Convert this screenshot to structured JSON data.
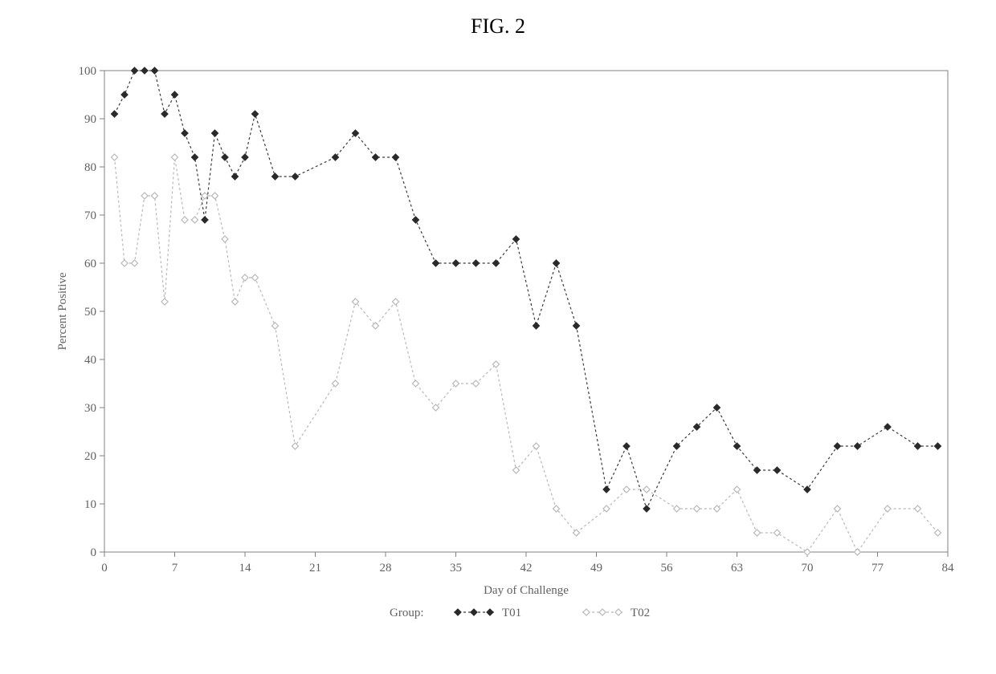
{
  "figure": {
    "title": "FIG. 2",
    "title_fontsize": 26,
    "title_color": "#000000",
    "background_color": "#ffffff"
  },
  "chart": {
    "type": "line",
    "plot_background": "#ffffff",
    "border_color": "#808080",
    "border_width": 1,
    "x": {
      "label": "Day of Challenge",
      "label_fontsize": 15,
      "min": 0,
      "max": 84,
      "ticks": [
        0,
        7,
        14,
        21,
        28,
        35,
        42,
        49,
        56,
        63,
        70,
        77,
        84
      ],
      "tick_fontsize": 15,
      "tick_color": "#808080",
      "axis_label_color": "#616161"
    },
    "y": {
      "label": "Percent Positive",
      "label_fontsize": 15,
      "min": 0,
      "max": 100,
      "ticks": [
        0,
        10,
        20,
        30,
        40,
        50,
        60,
        70,
        80,
        90,
        100
      ],
      "tick_fontsize": 15,
      "tick_color": "#808080",
      "axis_label_color": "#616161"
    },
    "legend": {
      "title": "Group:",
      "title_fontsize": 15,
      "fontsize": 15,
      "position": "bottom-center"
    },
    "series": [
      {
        "name": "T01",
        "label": "T01",
        "line_color": "#3a3a3a",
        "line_width": 1.2,
        "line_dash": "3,3",
        "marker": "diamond-filled",
        "marker_size": 8,
        "marker_color": "#2a2a2a",
        "data": [
          {
            "x": 1,
            "y": 91
          },
          {
            "x": 2,
            "y": 95
          },
          {
            "x": 3,
            "y": 100
          },
          {
            "x": 4,
            "y": 100
          },
          {
            "x": 5,
            "y": 100
          },
          {
            "x": 6,
            "y": 91
          },
          {
            "x": 7,
            "y": 95
          },
          {
            "x": 8,
            "y": 87
          },
          {
            "x": 9,
            "y": 82
          },
          {
            "x": 10,
            "y": 69
          },
          {
            "x": 11,
            "y": 87
          },
          {
            "x": 12,
            "y": 82
          },
          {
            "x": 13,
            "y": 78
          },
          {
            "x": 14,
            "y": 82
          },
          {
            "x": 15,
            "y": 91
          },
          {
            "x": 17,
            "y": 78
          },
          {
            "x": 19,
            "y": 78
          },
          {
            "x": 23,
            "y": 82
          },
          {
            "x": 25,
            "y": 87
          },
          {
            "x": 27,
            "y": 82
          },
          {
            "x": 29,
            "y": 82
          },
          {
            "x": 31,
            "y": 69
          },
          {
            "x": 33,
            "y": 60
          },
          {
            "x": 35,
            "y": 60
          },
          {
            "x": 37,
            "y": 60
          },
          {
            "x": 39,
            "y": 60
          },
          {
            "x": 41,
            "y": 65
          },
          {
            "x": 43,
            "y": 47
          },
          {
            "x": 45,
            "y": 60
          },
          {
            "x": 47,
            "y": 47
          },
          {
            "x": 50,
            "y": 13
          },
          {
            "x": 52,
            "y": 22
          },
          {
            "x": 54,
            "y": 9
          },
          {
            "x": 57,
            "y": 22
          },
          {
            "x": 59,
            "y": 26
          },
          {
            "x": 61,
            "y": 30
          },
          {
            "x": 63,
            "y": 22
          },
          {
            "x": 65,
            "y": 17
          },
          {
            "x": 67,
            "y": 17
          },
          {
            "x": 70,
            "y": 13
          },
          {
            "x": 73,
            "y": 22
          },
          {
            "x": 75,
            "y": 22
          },
          {
            "x": 78,
            "y": 26
          },
          {
            "x": 81,
            "y": 22
          },
          {
            "x": 83,
            "y": 22
          }
        ]
      },
      {
        "name": "T02",
        "label": "T02",
        "line_color": "#b8b8b8",
        "line_width": 1.2,
        "line_dash": "3,3",
        "marker": "diamond-open",
        "marker_size": 8,
        "marker_color": "#b8b8b8",
        "data": [
          {
            "x": 1,
            "y": 82
          },
          {
            "x": 2,
            "y": 60
          },
          {
            "x": 3,
            "y": 60
          },
          {
            "x": 4,
            "y": 74
          },
          {
            "x": 5,
            "y": 74
          },
          {
            "x": 6,
            "y": 52
          },
          {
            "x": 7,
            "y": 82
          },
          {
            "x": 8,
            "y": 69
          },
          {
            "x": 9,
            "y": 69
          },
          {
            "x": 10,
            "y": 74
          },
          {
            "x": 11,
            "y": 74
          },
          {
            "x": 12,
            "y": 65
          },
          {
            "x": 13,
            "y": 52
          },
          {
            "x": 14,
            "y": 57
          },
          {
            "x": 15,
            "y": 57
          },
          {
            "x": 17,
            "y": 47
          },
          {
            "x": 19,
            "y": 22
          },
          {
            "x": 23,
            "y": 35
          },
          {
            "x": 25,
            "y": 52
          },
          {
            "x": 27,
            "y": 47
          },
          {
            "x": 29,
            "y": 52
          },
          {
            "x": 31,
            "y": 35
          },
          {
            "x": 33,
            "y": 30
          },
          {
            "x": 35,
            "y": 35
          },
          {
            "x": 37,
            "y": 35
          },
          {
            "x": 39,
            "y": 39
          },
          {
            "x": 41,
            "y": 17
          },
          {
            "x": 43,
            "y": 22
          },
          {
            "x": 45,
            "y": 9
          },
          {
            "x": 47,
            "y": 4
          },
          {
            "x": 50,
            "y": 9
          },
          {
            "x": 52,
            "y": 13
          },
          {
            "x": 54,
            "y": 13
          },
          {
            "x": 57,
            "y": 9
          },
          {
            "x": 59,
            "y": 9
          },
          {
            "x": 61,
            "y": 9
          },
          {
            "x": 63,
            "y": 13
          },
          {
            "x": 65,
            "y": 4
          },
          {
            "x": 67,
            "y": 4
          },
          {
            "x": 70,
            "y": 0
          },
          {
            "x": 73,
            "y": 9
          },
          {
            "x": 75,
            "y": 0
          },
          {
            "x": 78,
            "y": 9
          },
          {
            "x": 81,
            "y": 9
          },
          {
            "x": 83,
            "y": 4
          }
        ]
      }
    ]
  }
}
